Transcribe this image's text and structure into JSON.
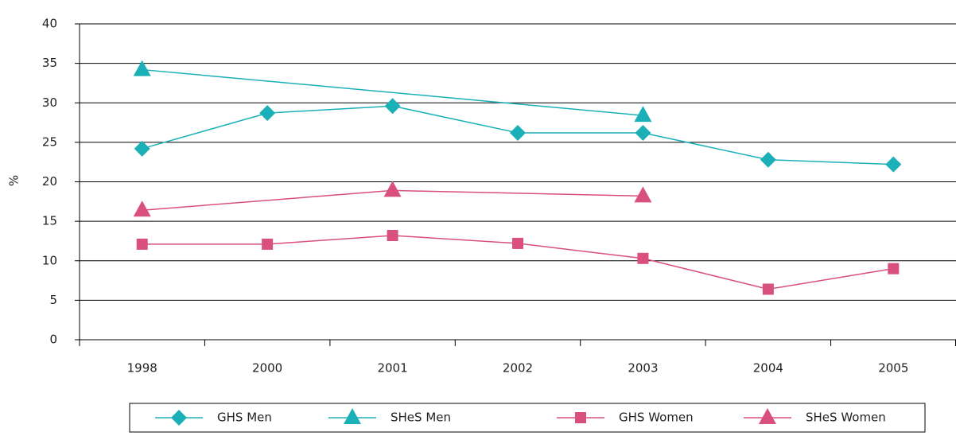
{
  "chart_data": {
    "type": "line",
    "y_label": "%",
    "categories": [
      "1998",
      "2000",
      "2001",
      "2002",
      "2003",
      "2004",
      "2005"
    ],
    "series": [
      {
        "name": "GHS Men",
        "color": "#1bb0b8",
        "marker": "diamond",
        "values": [
          24.2,
          28.7,
          29.6,
          26.2,
          26.2,
          22.8,
          22.2
        ]
      },
      {
        "name": "SHeS Men",
        "color": "#1bb0b8",
        "marker": "triangle",
        "connect_gaps": true,
        "values": [
          34.2,
          null,
          null,
          null,
          28.4,
          null,
          null
        ]
      },
      {
        "name": "GHS Women",
        "color": "#d94f7e",
        "marker": "square",
        "values": [
          12.1,
          12.1,
          13.2,
          12.2,
          10.3,
          6.4,
          9.0
        ]
      },
      {
        "name": "SHeS Women",
        "color": "#d94f7e",
        "marker": "triangle",
        "connect_gaps": true,
        "values": [
          16.4,
          null,
          18.9,
          null,
          18.2,
          null,
          null
        ]
      }
    ],
    "ylim": [
      0,
      40
    ],
    "yticks": [
      0,
      5,
      10,
      15,
      20,
      25,
      30,
      35,
      40
    ],
    "grid": true
  }
}
